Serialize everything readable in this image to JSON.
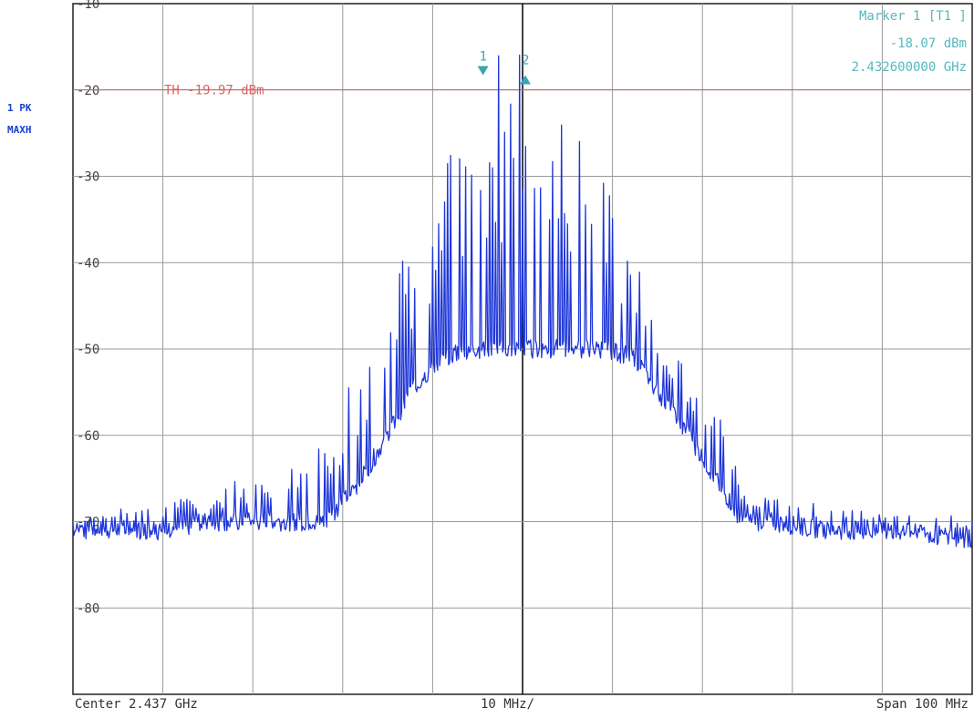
{
  "chart_data": {
    "type": "line",
    "title": "",
    "trace_label": "1 PK",
    "trace_mode": "MAXH",
    "xlabel": "",
    "ylabel": "",
    "x_unit": "GHz",
    "y_unit": "dBm",
    "xlim": [
      2.387,
      2.487
    ],
    "ylim": [
      -90,
      -10
    ],
    "y_ticks": [
      -10,
      -20,
      -30,
      -40,
      -50,
      -60,
      -70,
      -80
    ],
    "y_tick_labels": [
      "-10",
      "-20",
      "-30",
      "-40",
      "-50",
      "-60",
      "-70",
      "-80"
    ],
    "grid": true,
    "threshold": {
      "label": "TH",
      "value_text": "-19.97 dBm",
      "value": -19.97,
      "color": "#e06060"
    },
    "marker_readout": {
      "title": "Marker 1 [T1 ]",
      "level": "-18.07 dBm",
      "frequency": "2.432600000 GHz",
      "color": "#3aa6ad"
    },
    "markers": [
      {
        "label": "1",
        "x": 2.4326,
        "y": -18.07,
        "direction": "down"
      },
      {
        "label": "2",
        "x": 2.4373,
        "y": -18.5,
        "direction": "up"
      }
    ],
    "center_text": "Center 2.437 GHz",
    "div_text": "10 MHz/",
    "span_text": "Span 100 MHz",
    "series": [
      {
        "color": "#1f36d8",
        "x": [
          2.387,
          2.397,
          2.4035,
          2.4095,
          2.4125,
          2.415,
          2.4185,
          2.422,
          2.4245,
          2.428,
          2.431,
          2.433,
          2.437,
          2.441,
          2.443,
          2.446,
          2.4495,
          2.452,
          2.4555,
          2.459,
          2.4615,
          2.4645,
          2.4705,
          2.477,
          2.487
        ],
        "floor": [
          -71,
          -71,
          -70,
          -70,
          -70,
          -70,
          -66,
          -60,
          -55,
          -51,
          -50,
          -50,
          -50,
          -50,
          -50,
          -50,
          -51,
          -55,
          -60,
          -66,
          -70,
          -70,
          -71,
          -71,
          -72
        ],
        "peaks": [
          -69,
          -68,
          -66,
          -63,
          -63,
          -58,
          -52,
          -45,
          -37,
          -30,
          -22,
          -16,
          -14,
          -16,
          -22,
          -30,
          -37,
          -45,
          -52,
          -58,
          -66,
          -67,
          -68,
          -69,
          -69
        ]
      }
    ]
  }
}
